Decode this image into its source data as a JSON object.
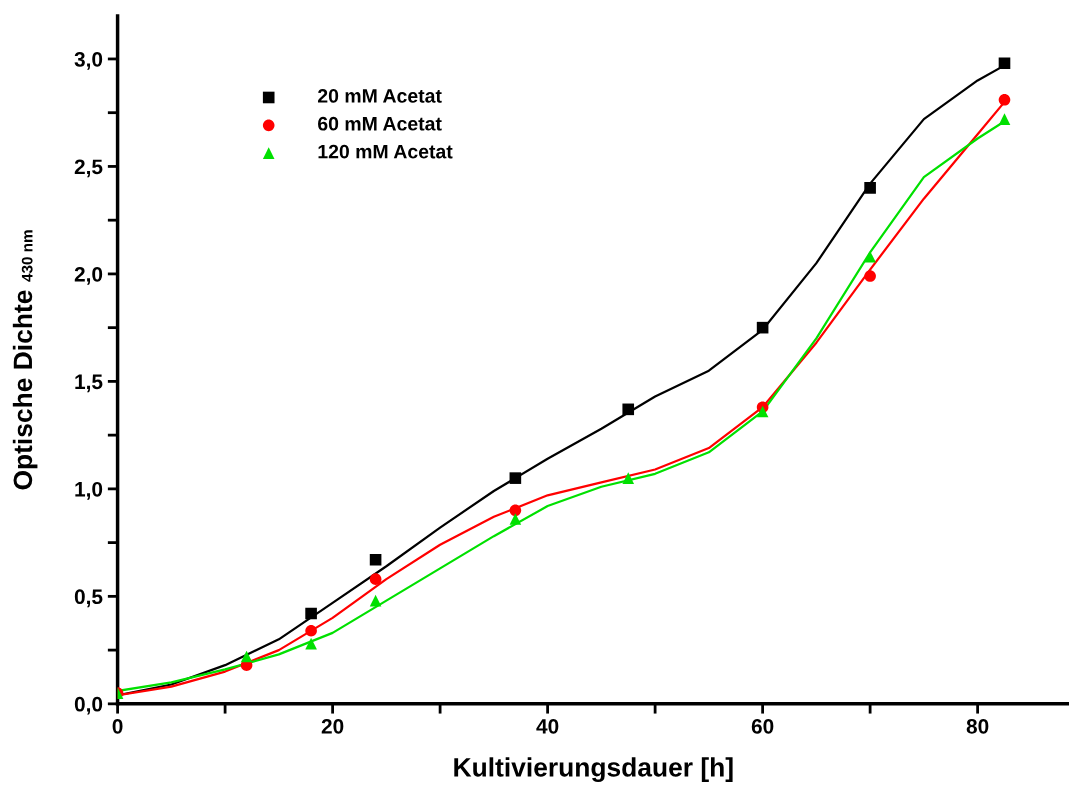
{
  "chart_data": {
    "type": "scatter",
    "xlabel": "Kultivierungsdauer [h]",
    "ylabel": "Optische Dichte $_{430 nm}$",
    "x": [
      0,
      12,
      18,
      24,
      37,
      47.5,
      60,
      70,
      82.5
    ],
    "series": [
      {
        "name": "20 mM Acetat",
        "color": "#000000",
        "marker": "square",
        "values": [
          null,
          null,
          0.42,
          0.67,
          1.05,
          1.37,
          1.75,
          2.4,
          2.98
        ]
      },
      {
        "name": "60 mM Acetat",
        "color": "#ff0000",
        "marker": "circle",
        "values": [
          0.05,
          0.18,
          0.34,
          0.58,
          0.9,
          null,
          1.38,
          1.99,
          2.81
        ]
      },
      {
        "name": "120 mM Acetat",
        "color": "#00e000",
        "marker": "triangle",
        "values": [
          0.05,
          0.22,
          0.28,
          0.48,
          0.86,
          1.05,
          1.36,
          2.08,
          2.72
        ]
      },
      {
        "type": "line",
        "color": "#000000",
        "x": [
          0,
          5,
          10,
          15,
          20,
          25,
          30,
          35,
          40,
          45,
          50,
          55,
          60,
          65,
          70,
          75,
          80,
          82.5
        ],
        "values": [
          0.04,
          0.09,
          0.18,
          0.3,
          0.47,
          0.64,
          0.82,
          0.99,
          1.14,
          1.28,
          1.43,
          1.55,
          1.74,
          2.05,
          2.42,
          2.72,
          2.9,
          2.97
        ]
      },
      {
        "type": "line",
        "color": "#ff0000",
        "x": [
          0,
          5,
          10,
          15,
          20,
          25,
          30,
          35,
          40,
          45,
          50,
          55,
          60,
          65,
          70,
          75,
          80,
          82.5
        ],
        "values": [
          0.04,
          0.08,
          0.15,
          0.25,
          0.4,
          0.58,
          0.74,
          0.87,
          0.97,
          1.03,
          1.09,
          1.19,
          1.38,
          1.68,
          2.02,
          2.35,
          2.65,
          2.8
        ]
      },
      {
        "type": "line",
        "color": "#00e000",
        "x": [
          0,
          5,
          10,
          15,
          20,
          25,
          30,
          35,
          40,
          45,
          50,
          55,
          60,
          65,
          70,
          75,
          80,
          82.5
        ],
        "values": [
          0.06,
          0.1,
          0.16,
          0.23,
          0.33,
          0.48,
          0.63,
          0.78,
          0.92,
          1.01,
          1.07,
          1.17,
          1.36,
          1.7,
          2.1,
          2.45,
          2.63,
          2.71
        ]
      }
    ],
    "xlim": [
      0,
      88.5
    ],
    "ylim": [
      0,
      3.2
    ],
    "xticks": [
      0,
      {
        "value": 10,
        "label": null
      },
      20,
      {
        "value": 30,
        "label": null
      },
      40,
      {
        "value": 50,
        "label": null
      },
      60,
      {
        "value": 70,
        "label": null
      },
      80
    ],
    "yticks": [
      {
        "value": 0,
        "label": "0,0"
      },
      {
        "value": 0.25,
        "label": null
      },
      {
        "value": 0.5,
        "label": "0,5"
      },
      {
        "value": 0.75,
        "label": null
      },
      {
        "value": 1.0,
        "label": "1,0"
      },
      {
        "value": 1.25,
        "label": null
      },
      {
        "value": 1.5,
        "label": "1,5"
      },
      {
        "value": 1.75,
        "label": null
      },
      {
        "value": 2.0,
        "label": "2,0"
      },
      {
        "value": 2.25,
        "label": null
      },
      {
        "value": 2.5,
        "label": "2,5"
      },
      {
        "value": 2.75,
        "label": null
      },
      {
        "value": 3.0,
        "label": "3,0"
      }
    ],
    "grid": false,
    "legend": "top left"
  }
}
